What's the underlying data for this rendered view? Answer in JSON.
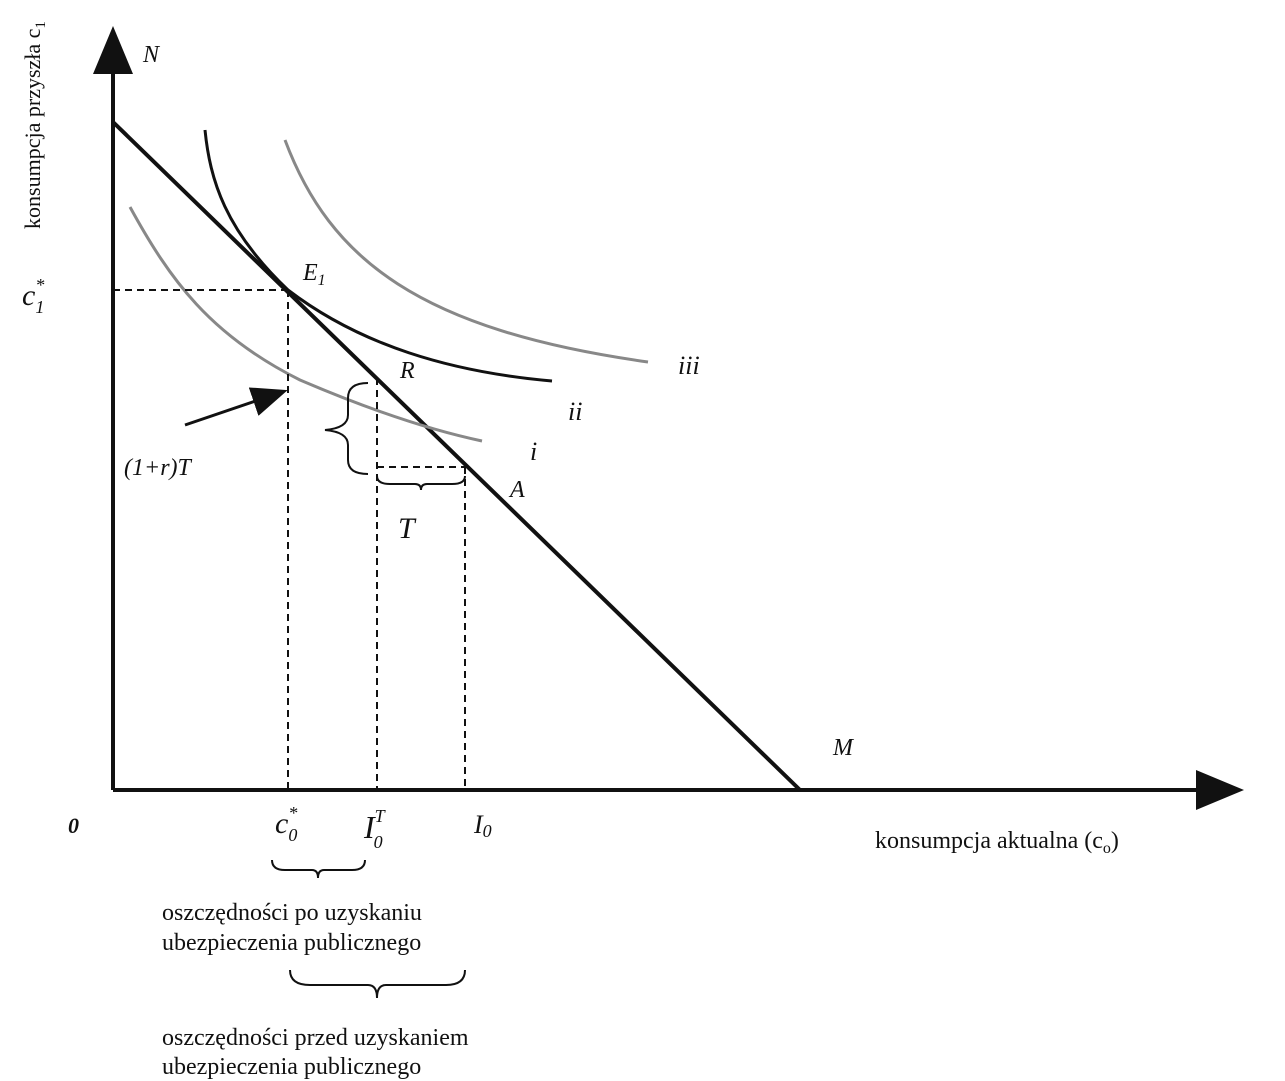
{
  "axes": {
    "y_label": {
      "base": "konsumpcja przyszła c",
      "sub": "1"
    },
    "x_label": {
      "base": "konsumpcja aktualna (c",
      "sub": "o",
      "tail": ")"
    },
    "origin": "0"
  },
  "points": {
    "N": "N",
    "E1": {
      "base": "E",
      "sub": "1"
    },
    "R": "R",
    "A": "A",
    "M": "M"
  },
  "curves": {
    "i": "i",
    "ii": "ii",
    "iii": "iii"
  },
  "ticks": {
    "c1_star": {
      "base": "c",
      "sup": "*",
      "sub": "1"
    },
    "c0_star": {
      "base": "c",
      "sup": "*",
      "sub": "0"
    },
    "I0T": {
      "base": "I",
      "sup": "T",
      "sub": "0"
    },
    "I0": {
      "base": "I",
      "sub": "0"
    }
  },
  "annotations": {
    "one_plus_r_T": "(1+r)T",
    "T": "T"
  },
  "notes": [
    [
      "oszczędności  po  uzyskaniu",
      "ubezpieczenia publicznego"
    ],
    [
      "oszczędności przed uzyskaniem",
      "ubezpieczenia publicznego"
    ]
  ]
}
